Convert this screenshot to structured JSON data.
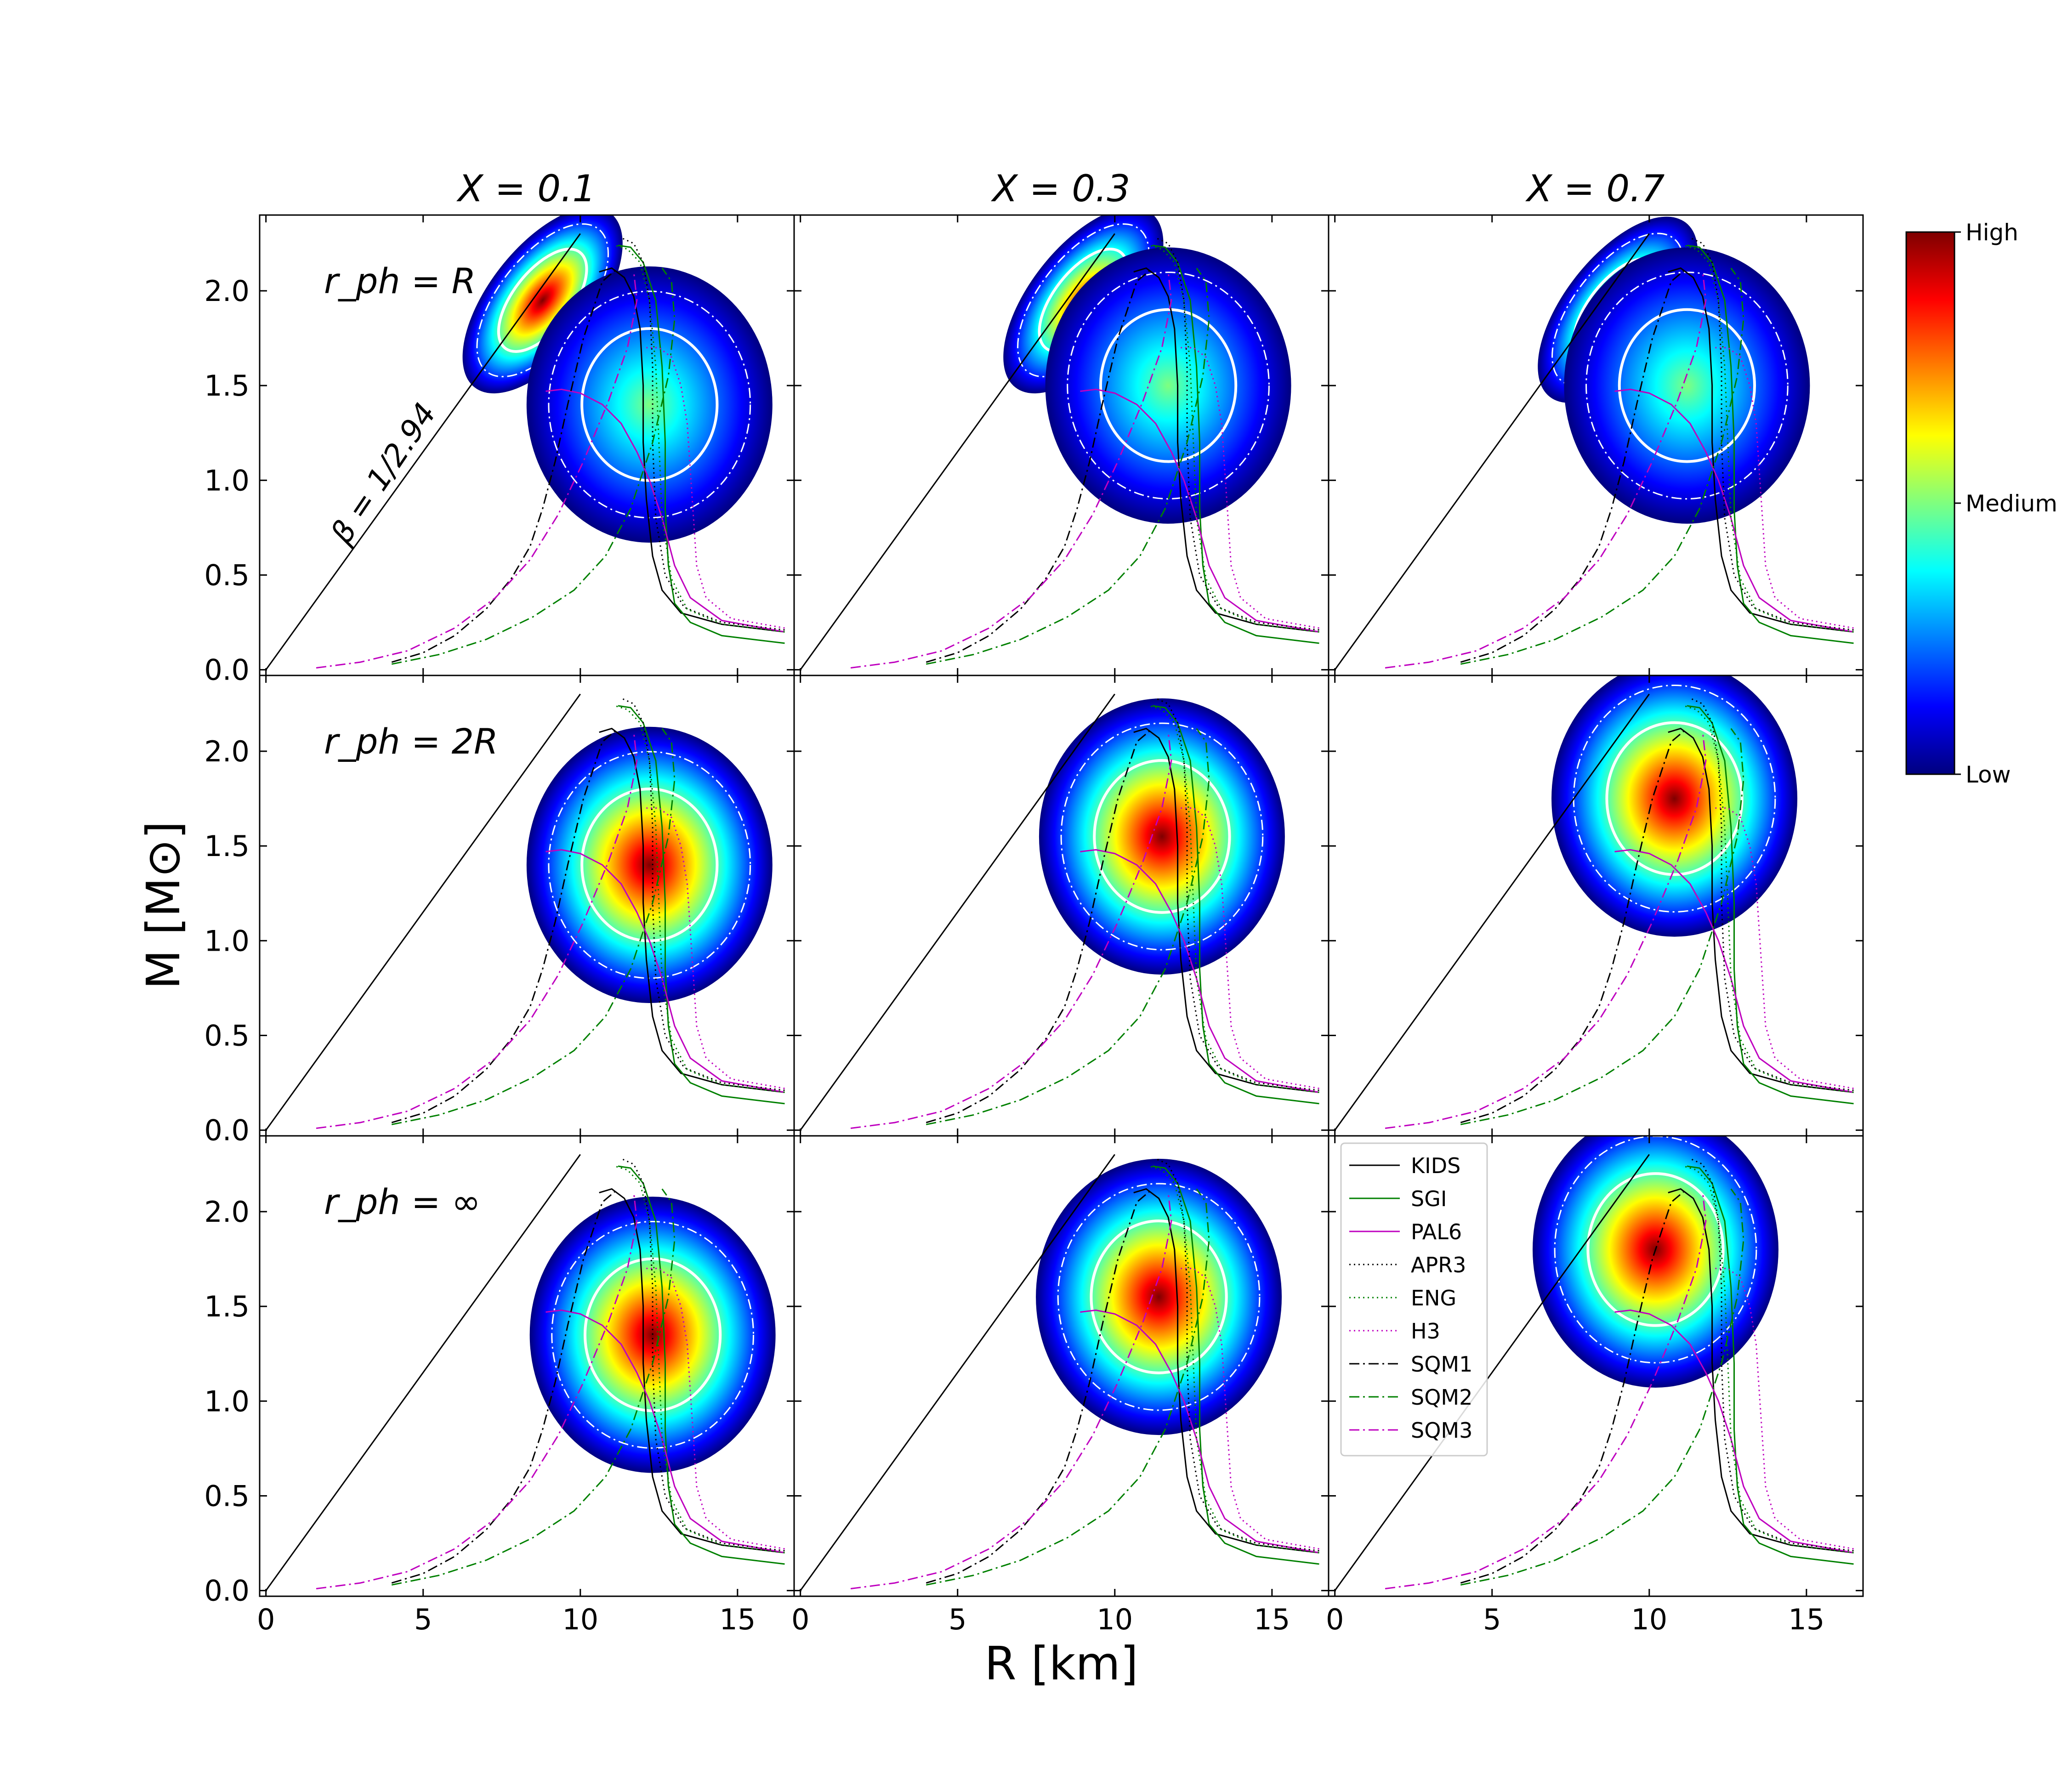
{
  "figure": {
    "xlabel": "R [km]",
    "ylabel": "M [M⊙]",
    "column_titles": [
      "X = 0.1",
      "X = 0.3",
      "X = 0.7"
    ],
    "row_labels": [
      "r_ph = R",
      "r_ph = 2R",
      "r_ph = ∞"
    ],
    "beta_label": "β = 1/2.94",
    "colorbar": {
      "labels": [
        "High",
        "Medium",
        "Low"
      ]
    },
    "legend_entries": [
      "KIDS",
      "SGI",
      "PAL6",
      "APR3",
      "ENG",
      "H3",
      "SQM1",
      "SQM2",
      "SQM3"
    ]
  },
  "chart_data": {
    "type": "heatmap",
    "description_of_grid": "3x3 panels: columns X = 0.1, 0.3, 0.7; rows r_ph = R, 2R, infinity",
    "xlim": [
      -0.2,
      16.8
    ],
    "ylim": [
      -0.03,
      2.4
    ],
    "xticks": [
      0,
      5,
      10,
      15
    ],
    "yticks": [
      0.0,
      0.5,
      1.0,
      1.5,
      2.0
    ],
    "colormap": [
      "#00007f",
      "#0000ff",
      "#007fff",
      "#00ffff",
      "#7fff7f",
      "#ffff00",
      "#ff7f00",
      "#ff0000",
      "#7f0000"
    ],
    "beta_line": {
      "beta": 0.34,
      "label": "β = 1/2.94"
    },
    "panels": [
      {
        "row": 0,
        "col": 0,
        "peaks": [
          {
            "R": 8.8,
            "M": 1.95,
            "level": 0.95
          },
          {
            "R": 12.2,
            "M": 1.4,
            "level": 0.55
          }
        ]
      },
      {
        "row": 0,
        "col": 1,
        "peaks": [
          {
            "R": 9.0,
            "M": 1.95,
            "level": 0.9
          },
          {
            "R": 11.7,
            "M": 1.5,
            "level": 0.5
          }
        ]
      },
      {
        "row": 0,
        "col": 2,
        "peaks": [
          {
            "R": 9.0,
            "M": 1.9,
            "level": 0.9
          },
          {
            "R": 11.2,
            "M": 1.5,
            "level": 0.45
          }
        ]
      },
      {
        "row": 1,
        "col": 0,
        "peaks": [
          {
            "R": 12.2,
            "M": 1.4,
            "level": 1.0
          }
        ]
      },
      {
        "row": 1,
        "col": 1,
        "peaks": [
          {
            "R": 11.5,
            "M": 1.55,
            "level": 1.0
          }
        ]
      },
      {
        "row": 1,
        "col": 2,
        "peaks": [
          {
            "R": 10.8,
            "M": 1.75,
            "level": 1.0
          }
        ]
      },
      {
        "row": 2,
        "col": 0,
        "peaks": [
          {
            "R": 12.3,
            "M": 1.35,
            "level": 1.0
          }
        ]
      },
      {
        "row": 2,
        "col": 1,
        "peaks": [
          {
            "R": 11.4,
            "M": 1.55,
            "level": 1.0
          }
        ]
      },
      {
        "row": 2,
        "col": 2,
        "peaks": [
          {
            "R": 10.2,
            "M": 1.8,
            "level": 1.0
          }
        ]
      }
    ],
    "series": [
      {
        "name": "KIDS",
        "color": "#000000",
        "dash": "solid",
        "R": [
          16.5,
          14.5,
          13.2,
          12.6,
          12.3,
          12.1,
          12.0,
          12.0,
          11.9,
          11.7,
          11.4,
          11.0,
          10.6
        ],
        "M": [
          0.2,
          0.24,
          0.3,
          0.42,
          0.6,
          0.9,
          1.2,
          1.5,
          1.8,
          1.97,
          2.07,
          2.12,
          2.1
        ]
      },
      {
        "name": "SGI",
        "color": "#008000",
        "dash": "solid",
        "R": [
          16.5,
          14.5,
          13.5,
          13.0,
          12.8,
          12.7,
          12.7,
          12.6,
          12.4,
          12.0,
          11.6,
          11.2
        ],
        "M": [
          0.14,
          0.18,
          0.25,
          0.35,
          0.55,
          0.85,
          1.2,
          1.6,
          1.95,
          2.15,
          2.23,
          2.24
        ]
      },
      {
        "name": "PAL6",
        "color": "#bf00bf",
        "dash": "solid",
        "R": [
          16.5,
          14.5,
          13.5,
          13.0,
          12.6,
          12.2,
          11.8,
          11.3,
          10.7,
          10.0,
          9.4,
          8.9
        ],
        "M": [
          0.2,
          0.26,
          0.38,
          0.55,
          0.8,
          1.0,
          1.15,
          1.3,
          1.4,
          1.46,
          1.48,
          1.47
        ]
      },
      {
        "name": "APR3",
        "color": "#000000",
        "dash": "dotted",
        "R": [
          16.5,
          14.5,
          13.3,
          12.7,
          12.4,
          12.3,
          12.3,
          12.2,
          12.0,
          11.7,
          11.3
        ],
        "M": [
          0.21,
          0.25,
          0.33,
          0.5,
          0.8,
          1.2,
          1.6,
          1.95,
          2.15,
          2.25,
          2.28
        ]
      },
      {
        "name": "ENG",
        "color": "#008000",
        "dash": "dotted",
        "R": [
          16.5,
          14.5,
          13.4,
          12.9,
          12.6,
          12.5,
          12.4,
          12.2,
          11.9,
          11.5,
          11.1
        ],
        "M": [
          0.2,
          0.24,
          0.32,
          0.48,
          0.8,
          1.2,
          1.6,
          1.95,
          2.15,
          2.22,
          2.24
        ]
      },
      {
        "name": "H3",
        "color": "#bf00bf",
        "dash": "dotted",
        "R": [
          16.5,
          14.8,
          14.0,
          13.7,
          13.6,
          13.5,
          13.4,
          13.2,
          12.9,
          12.5,
          12.1
        ],
        "M": [
          0.22,
          0.27,
          0.38,
          0.55,
          0.8,
          1.05,
          1.3,
          1.5,
          1.65,
          1.7,
          1.7
        ]
      },
      {
        "name": "SQM1",
        "color": "#000000",
        "dash": "dashdot",
        "R": [
          4.0,
          5.0,
          6.0,
          7.0,
          7.8,
          8.4,
          8.8,
          9.2,
          9.6,
          10.1,
          10.7,
          11.2
        ],
        "M": [
          0.04,
          0.09,
          0.18,
          0.32,
          0.48,
          0.65,
          0.85,
          1.1,
          1.4,
          1.75,
          2.05,
          2.12
        ]
      },
      {
        "name": "SQM2",
        "color": "#008000",
        "dash": "dashdot",
        "R": [
          4.0,
          5.5,
          7.0,
          8.5,
          9.8,
          10.8,
          11.6,
          12.3,
          12.8,
          13.0,
          12.9,
          12.6
        ],
        "M": [
          0.03,
          0.08,
          0.16,
          0.28,
          0.42,
          0.6,
          0.85,
          1.2,
          1.55,
          1.85,
          2.05,
          2.12
        ]
      },
      {
        "name": "SQM3",
        "color": "#bf00bf",
        "dash": "dashdot",
        "R": [
          1.6,
          3.0,
          4.5,
          6.0,
          7.3,
          8.4,
          9.3,
          10.1,
          10.9,
          11.5,
          11.8,
          11.7
        ],
        "M": [
          0.01,
          0.04,
          0.1,
          0.22,
          0.38,
          0.58,
          0.82,
          1.1,
          1.42,
          1.7,
          1.95,
          2.1
        ]
      }
    ]
  }
}
